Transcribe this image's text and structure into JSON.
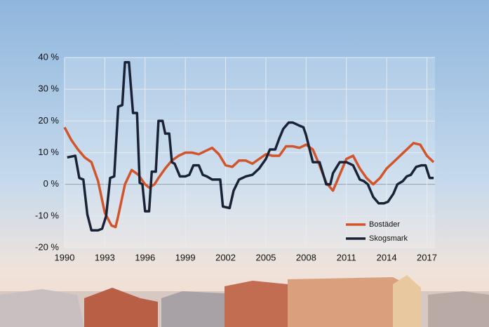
{
  "chart_data": {
    "type": "line",
    "xlim": [
      1990,
      2017.6
    ],
    "xticks": [
      1990,
      1993,
      1996,
      1999,
      2002,
      2005,
      2008,
      2011,
      2014,
      2017
    ],
    "ylim": [
      -20,
      40
    ],
    "yticks": [
      {
        "value": 40,
        "label": "40 %"
      },
      {
        "value": 30,
        "label": "30 %"
      },
      {
        "value": 20,
        "label": "20 %"
      },
      {
        "value": 10,
        "label": "10 %"
      },
      {
        "value": 0,
        "label": "0 %"
      },
      {
        "value": -10,
        "label": "-10 %"
      },
      {
        "value": -20,
        "label": "-20 %"
      }
    ],
    "grid": true,
    "legend": "lower right",
    "series": [
      {
        "name": "Bostäder",
        "color": "#d2542a",
        "x": [
          1990,
          1990.5,
          1991,
          1991.5,
          1992,
          1992.5,
          1993,
          1993.5,
          1993.8,
          1994,
          1994.5,
          1995,
          1995.5,
          1996,
          1996.3,
          1996.7,
          1997,
          1997.5,
          1998,
          1998.5,
          1999,
          1999.5,
          2000,
          2000.5,
          2001,
          2001.5,
          2002,
          2002.5,
          2003,
          2003.5,
          2004,
          2004.5,
          2005,
          2005.5,
          2006,
          2006.5,
          2007,
          2007.5,
          2008,
          2008.5,
          2009,
          2009.5,
          2010,
          2010.5,
          2011,
          2011.5,
          2012,
          2012.5,
          2013,
          2013.5,
          2014,
          2014.5,
          2015,
          2015.5,
          2016,
          2016.5,
          2017,
          2017.5
        ],
        "values": [
          18,
          14,
          11,
          8.5,
          7,
          1,
          -9,
          -13,
          -13.5,
          -10,
          0,
          4.5,
          3,
          0,
          -1,
          0,
          2,
          5,
          7.5,
          9,
          10,
          10,
          9.5,
          10.5,
          11.5,
          9.5,
          6,
          5.5,
          7.5,
          7.5,
          6.5,
          8,
          9.5,
          9,
          9,
          12,
          12,
          11.5,
          12.5,
          11,
          6,
          0.5,
          -2,
          3,
          8,
          9,
          5,
          2,
          0,
          2,
          5,
          7,
          9,
          11,
          13,
          12.5,
          9,
          7
        ]
      },
      {
        "name": "Skogsmark",
        "color": "#1a2236",
        "x": [
          1990.2,
          1990.8,
          1991.1,
          1991.4,
          1991.7,
          1992,
          1992.5,
          1992.8,
          1993.1,
          1993.4,
          1993.7,
          1994,
          1994.3,
          1994.5,
          1994.8,
          1995.1,
          1995.4,
          1995.6,
          1995.8,
          1996,
          1996.3,
          1996.5,
          1996.8,
          1997,
          1997.3,
          1997.5,
          1997.8,
          1998,
          1998.2,
          1998.6,
          1999,
          1999.3,
          1999.6,
          2000,
          2000.3,
          2000.6,
          2001,
          2001.6,
          2001.8,
          2002.3,
          2002.6,
          2003,
          2003.5,
          2004,
          2004.5,
          2005,
          2005.3,
          2005.7,
          2006,
          2006.3,
          2006.7,
          2007,
          2007.5,
          2007.8,
          2008,
          2008.5,
          2009,
          2009.5,
          2009.8,
          2010,
          2010.5,
          2011,
          2011.5,
          2012,
          2012.3,
          2012.6,
          2013,
          2013.4,
          2013.8,
          2014.1,
          2014.5,
          2014.8,
          2015.2,
          2015.5,
          2015.8,
          2016.2,
          2016.6,
          2016.9,
          2017.2,
          2017.5
        ],
        "values": [
          8.5,
          9,
          2,
          1.5,
          -9.5,
          -14.5,
          -14.5,
          -14,
          -10,
          2,
          2.5,
          24.5,
          25,
          38.5,
          38.5,
          22.5,
          22.5,
          0.5,
          0,
          -8.5,
          -8.5,
          4,
          4,
          20,
          20,
          16,
          16,
          7,
          6.5,
          2.5,
          2.5,
          3,
          6,
          6,
          3,
          2.5,
          1.5,
          1.5,
          -7,
          -7.5,
          -2,
          1.5,
          2.5,
          3,
          5,
          8,
          11,
          11,
          14.5,
          17.5,
          19.5,
          19.5,
          18.5,
          18,
          15.5,
          7,
          7,
          0,
          0,
          3.5,
          7,
          7,
          6,
          1.5,
          1,
          0,
          -4,
          -6,
          -6,
          -5.5,
          -3,
          0,
          1,
          2.5,
          3,
          5.5,
          6,
          6,
          2,
          2
        ]
      }
    ]
  }
}
